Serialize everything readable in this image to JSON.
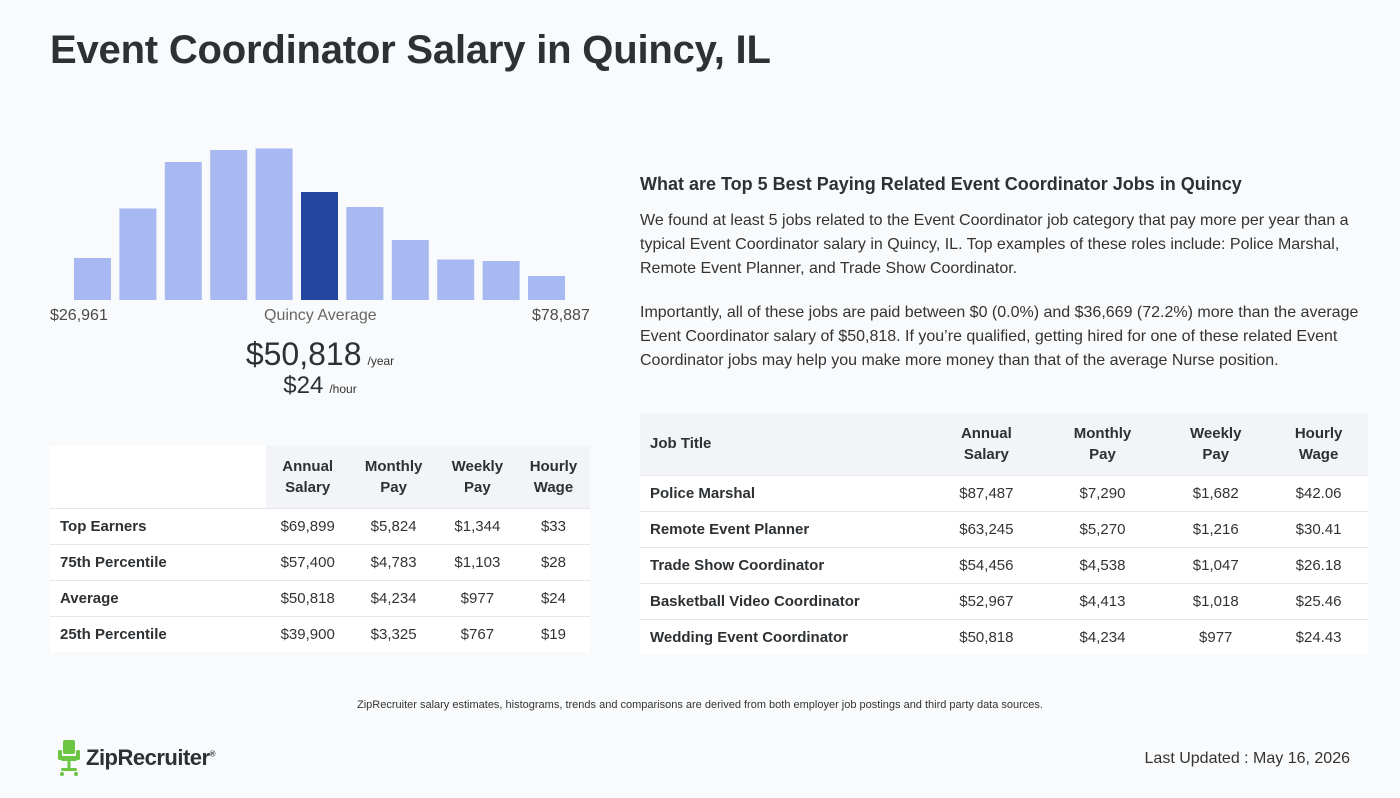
{
  "title": "Event Coordinator Salary in Quincy, IL",
  "histogram": {
    "range_min": "$26,961",
    "range_label": "Quincy Average",
    "range_max": "$78,887",
    "bar_heights_pct": [
      0.28,
      0.61,
      0.92,
      1.0,
      1.01,
      0.72,
      0.62,
      0.4,
      0.27,
      0.26,
      0.16
    ],
    "highlight_index": 5,
    "bar_color": "#a8b8f0",
    "highlight_color": "#2347a0"
  },
  "average": {
    "annual": "$50,818",
    "annual_unit": "/year",
    "hourly": "$24",
    "hourly_unit": "/hour"
  },
  "salary_table": {
    "headers": [
      "",
      "Annual\nSalary",
      "Monthly\nPay",
      "Weekly\nPay",
      "Hourly\nWage"
    ],
    "header_lines": [
      [
        "",
        ""
      ],
      [
        "Annual",
        "Salary"
      ],
      [
        "Monthly",
        "Pay"
      ],
      [
        "Weekly",
        "Pay"
      ],
      [
        "Hourly",
        "Wage"
      ]
    ],
    "rows": [
      [
        "Top Earners",
        "$69,899",
        "$5,824",
        "$1,344",
        "$33"
      ],
      [
        "75th Percentile",
        "$57,400",
        "$4,783",
        "$1,103",
        "$28"
      ],
      [
        "Average",
        "$50,818",
        "$4,234",
        "$977",
        "$24"
      ],
      [
        "25th Percentile",
        "$39,900",
        "$3,325",
        "$767",
        "$19"
      ]
    ]
  },
  "related": {
    "title": "What are Top 5 Best Paying Related Event Coordinator Jobs in Quincy",
    "p1": "We found at least 5 jobs related to the Event Coordinator job category that pay more per year than a typical Event Coordinator salary in Quincy, IL. Top examples of these roles include: Police Marshal, Remote Event Planner, and Trade Show Coordinator.",
    "p2": "Importantly, all of these jobs are paid between $0 (0.0%) and $36,669 (72.2%) more than the average Event Coordinator salary of $50,818. If you’re qualified, getting hired for one of these related Event Coordinator jobs may help you make more money than that of the average Nurse position."
  },
  "jobs_table": {
    "header_lines": [
      [
        "Job Title"
      ],
      [
        "Annual",
        "Salary"
      ],
      [
        "Monthly",
        "Pay"
      ],
      [
        "Weekly",
        "Pay"
      ],
      [
        "Hourly",
        "Wage"
      ]
    ],
    "rows": [
      [
        "Police Marshal",
        "$87,487",
        "$7,290",
        "$1,682",
        "$42.06"
      ],
      [
        "Remote Event Planner",
        "$63,245",
        "$5,270",
        "$1,216",
        "$30.41"
      ],
      [
        "Trade Show Coordinator",
        "$54,456",
        "$4,538",
        "$1,047",
        "$26.18"
      ],
      [
        "Basketball Video Coordinator",
        "$52,967",
        "$4,413",
        "$1,018",
        "$25.46"
      ],
      [
        "Wedding Event Coordinator",
        "$50,818",
        "$4,234",
        "$977",
        "$24.43"
      ]
    ]
  },
  "disclaimer": "ZipRecruiter salary estimates, histograms, trends and comparisons are derived from both employer job postings and third party data sources.",
  "footer": {
    "logo_text": "ZipRecruiter",
    "logo_reg": "®",
    "logo_icon": "chair-icon",
    "logo_color": "#6cc644",
    "last_updated": "Last Updated : May 16, 2026"
  }
}
